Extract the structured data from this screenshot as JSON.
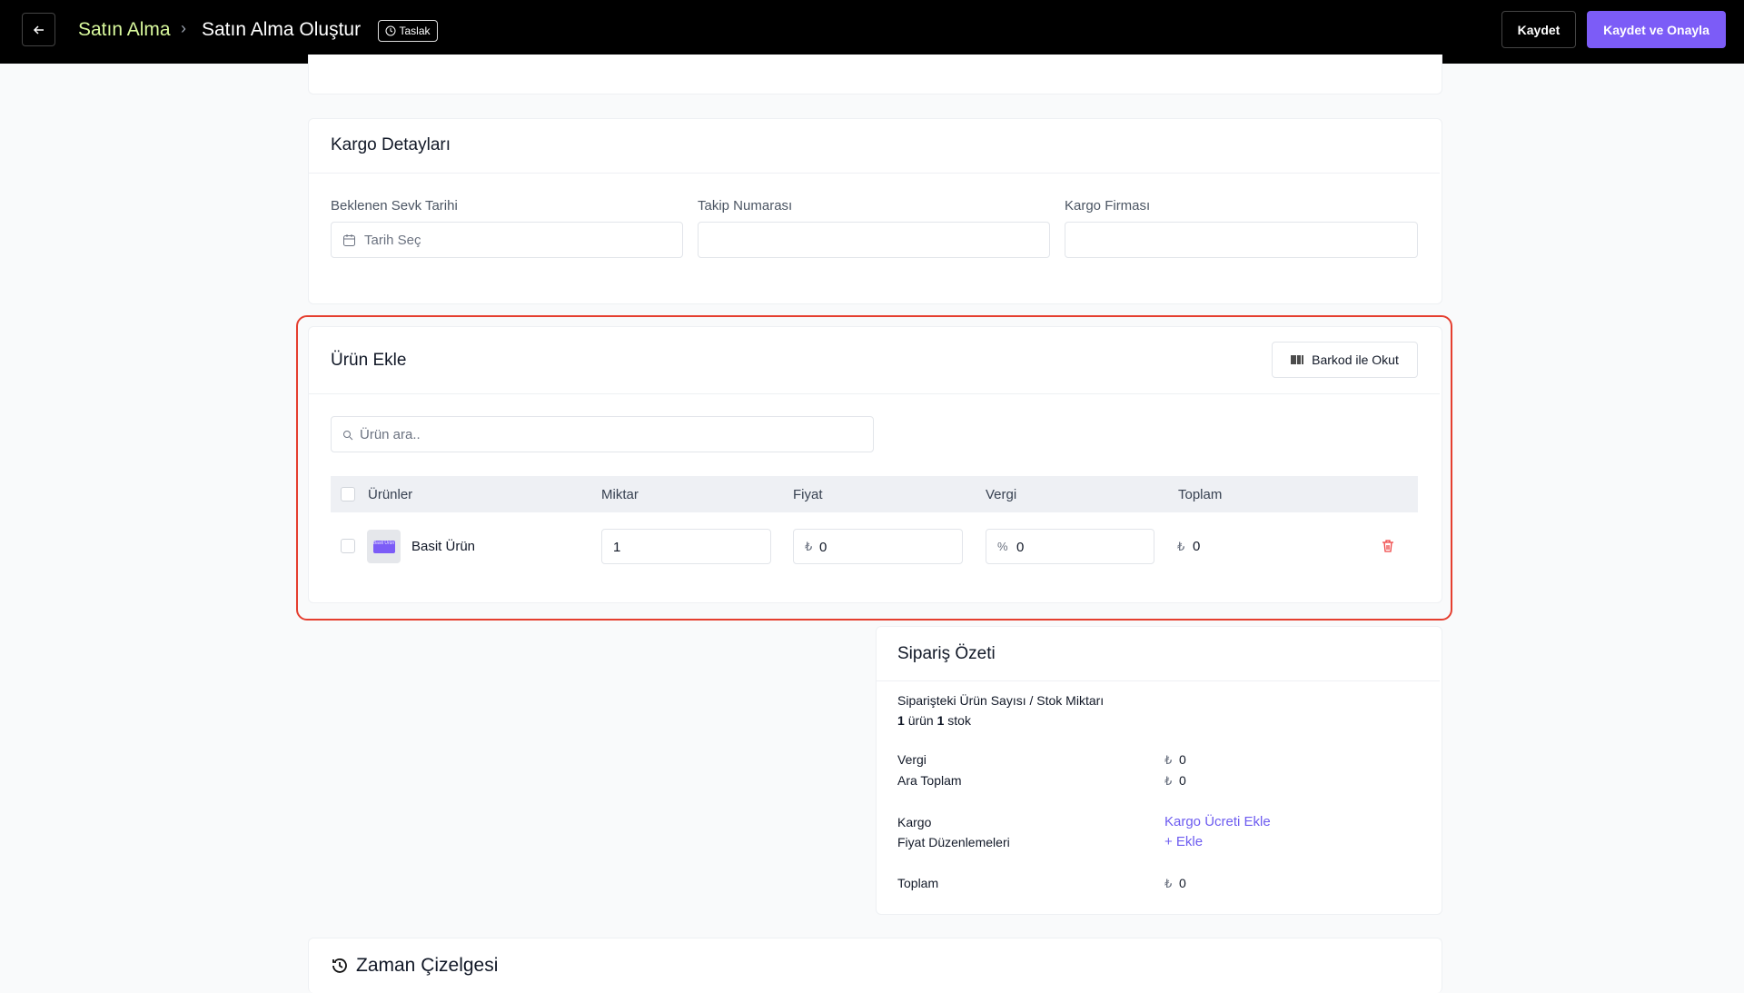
{
  "header": {
    "breadcrumb_parent": "Satın Alma",
    "breadcrumb_current": "Satın Alma Oluştur",
    "status_badge": "Taslak",
    "save_button": "Kaydet",
    "save_approve_button": "Kaydet ve Onayla"
  },
  "cargo": {
    "title": "Kargo Detayları",
    "fields": [
      {
        "label": "Beklenen Sevk Tarihi",
        "placeholder": "Tarih Seç"
      },
      {
        "label": "Takip Numarası"
      },
      {
        "label": "Kargo Firması"
      }
    ]
  },
  "products": {
    "title": "Ürün Ekle",
    "barcode_button": "Barkod ile Okut",
    "search_placeholder": "Ürün ara..",
    "columns": [
      "Ürünler",
      "Miktar",
      "Fiyat",
      "Vergi",
      "Toplam"
    ],
    "currency": "₺",
    "tax_symbol": "%",
    "rows": [
      {
        "thumb": "Basit Ürün",
        "name": "Basit Ürün",
        "quantity": "1",
        "price": "0",
        "tax": "0",
        "total": "0"
      }
    ]
  },
  "summary": {
    "title": "Sipariş Özeti",
    "count_label": "Siparişteki Ürün Sayısı / Stok Miktarı",
    "product_count": "1",
    "product_unit": "ürün",
    "stock_count": "1",
    "stock_unit": "stok",
    "tax_label": "Vergi",
    "tax_value": "0",
    "subtotal_label": "Ara Toplam",
    "subtotal_value": "0",
    "cargo_label": "Kargo",
    "cargo_action": "Kargo Ücreti Ekle",
    "adjust_label": "Fiyat Düzenlemeleri",
    "adjust_action": "+ Ekle",
    "total_label": "Toplam",
    "total_value": "0"
  },
  "timeline": {
    "title": "Zaman Çizelgesi"
  }
}
